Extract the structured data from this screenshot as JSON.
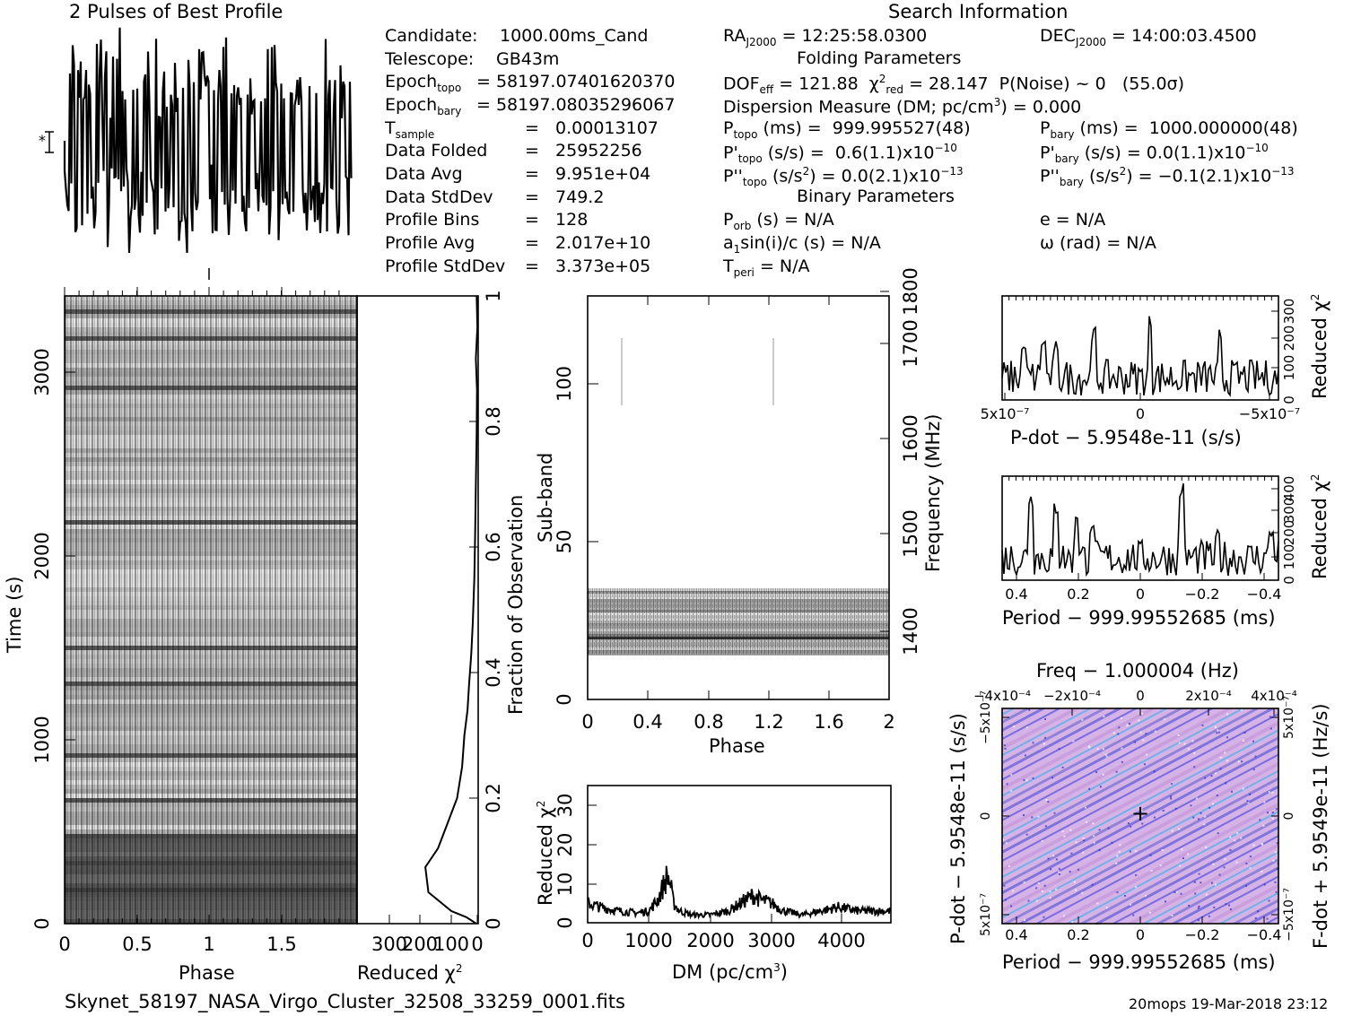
{
  "titles": {
    "profile": "2 Pulses of Best Profile",
    "search_info": "Search Information",
    "folding": "Folding Parameters",
    "binary": "Binary Parameters",
    "footer_file": "Skynet_58197_NASA_Virgo_Cluster_32508_33259_0001.fits",
    "footer_stamp": "20mops 19-Mar-2018 23:12"
  },
  "info_left": [
    {
      "label": "Candidate:",
      "value": "1000.00ms_Cand"
    },
    {
      "label": "Telescope:",
      "value": "GB43m"
    },
    {
      "label": "Epoch",
      "sub": "topo",
      "value": "= 58197.07401620370"
    },
    {
      "label": "Epoch",
      "sub": "bary",
      "value": "= 58197.08035296067"
    },
    {
      "label": "T",
      "sub": "sample",
      "value": "=   0.00013107"
    },
    {
      "label": "Data Folded",
      "value": "=   25952256"
    },
    {
      "label": "Data Avg",
      "value": "=   9.951e+04"
    },
    {
      "label": "Data StdDev",
      "value": "=   749.2"
    },
    {
      "label": "Profile Bins",
      "value": "=   128"
    },
    {
      "label": "Profile Avg",
      "value": "=   2.017e+10"
    },
    {
      "label": "Profile StdDev",
      "value": "=   3.373e+05"
    }
  ],
  "info_mid": {
    "ra": "= 12:25:58.0300",
    "dec": "= 14:00:03.4500",
    "dof": "= 121.88",
    "chi2": "= 28.147",
    "pnoise": "P(Noise) ~ 0",
    "sigma": "(55.0σ)",
    "dm": "Dispersion Measure (DM; pc/cm",
    "dm_val": ") = 0.000",
    "ptopo": "(ms) =  999.995527(48)",
    "pbary": "(ms) =  1000.000000(48)",
    "pdtopo": "(s/s) =  0.6(1.1)x10",
    "pdtopo_exp": "−10",
    "pdbary": "(s/s) = 0.0(1.1)x10",
    "pdbary_exp": "−10",
    "pddtopo": "= 0.0(2.1)x10",
    "pddtopo_exp": "−13",
    "pddbary": "= −0.1(2.1)x10",
    "pddbary_exp": "−13",
    "porb": "(s) = N/A",
    "asini": "sin(i)/c (s) = N/A",
    "tperi": "= N/A",
    "ecc": "e = N/A",
    "omega": "ω (rad) = N/A"
  },
  "axes": {
    "phase": "Phase",
    "time": "Time (s)",
    "reduced_chi2": "Reduced χ",
    "fraction": "Fraction of Observation",
    "subband": "Sub-band",
    "frequency": "Frequency (MHz)",
    "dm": "DM (pc/cm",
    "pdot": "P-dot − 5.9548e-11 (s/s)",
    "period": "Period − 999.99552685 (ms)",
    "freq_top": "Freq − 1.000004 (Hz)",
    "pdot_side": "P-dot − 5.9548e-11 (s/s)",
    "fdot_side": "F-dot + 5.9549e-11 (Hz/s)"
  },
  "chart_data": [
    {
      "type": "line",
      "title": "2 Pulses of Best Profile",
      "x": [
        0,
        2
      ],
      "xlabel": "",
      "ylabel": ""
    },
    {
      "type": "heatmap",
      "xlabel": "Phase",
      "ylabel": "Time (s)",
      "xlim": [
        0,
        2
      ],
      "ylim": [
        0,
        3400
      ],
      "xticks": [
        "0",
        "0.5",
        "1",
        "1.5"
      ],
      "yticks": [
        "0",
        "1000",
        "2000",
        "3000"
      ]
    },
    {
      "type": "line",
      "xlabel": "Reduced χ²",
      "ylabel": "Fraction of Observation",
      "xticks": [
        "300",
        "200",
        "100",
        "0"
      ],
      "yticks": [
        "0",
        "0.2",
        "0.4",
        "0.6",
        "0.8",
        "1"
      ],
      "points": [
        [
          5,
          0
        ],
        [
          30,
          0.01
        ],
        [
          70,
          0.02
        ],
        [
          130,
          0.05
        ],
        [
          138,
          0.09
        ],
        [
          105,
          0.12
        ],
        [
          80,
          0.16
        ],
        [
          55,
          0.2
        ],
        [
          42,
          0.25
        ],
        [
          36,
          0.3
        ],
        [
          28,
          0.34
        ],
        [
          24,
          0.38
        ],
        [
          18,
          0.43
        ],
        [
          14,
          0.48
        ],
        [
          10,
          0.55
        ],
        [
          8,
          0.62
        ],
        [
          6,
          0.7
        ],
        [
          4,
          0.78
        ],
        [
          3,
          0.85
        ],
        [
          6,
          0.9
        ],
        [
          2,
          0.95
        ],
        [
          4,
          1.0
        ]
      ]
    },
    {
      "type": "heatmap",
      "xlabel": "Phase",
      "ylabel": "Sub-band",
      "xlim": [
        0,
        2
      ],
      "ylim": [
        0,
        128
      ],
      "xticks": [
        "0",
        "0.4",
        "0.8",
        "1.2",
        "1.6",
        "2"
      ],
      "yticks": [
        "0",
        "50",
        "100"
      ],
      "yticks_right": [
        "1400",
        "1500",
        "1600",
        "1700",
        "1800"
      ],
      "y2label": "Frequency (MHz)"
    },
    {
      "type": "line",
      "xlabel": "DM (pc/cm³)",
      "ylabel": "Reduced χ²",
      "xlim": [
        0,
        4950
      ],
      "ylim": [
        0,
        35
      ],
      "xticks": [
        "0",
        "1000",
        "2000",
        "3000",
        "4000"
      ],
      "yticks": [
        "0",
        "10",
        "20",
        "30"
      ],
      "x": [
        0,
        200,
        500,
        800,
        1000,
        1150,
        1250,
        1300,
        1350,
        1400,
        1500,
        1700,
        2000,
        2300,
        2500,
        2700,
        2800,
        3000,
        3200,
        3500,
        3800,
        4100,
        4400,
        4700,
        4950
      ],
      "y": [
        5,
        4,
        3,
        2.5,
        3,
        6,
        10,
        12,
        10,
        5,
        3,
        2,
        2,
        3,
        5,
        7,
        6,
        5,
        3,
        2,
        3,
        4,
        3,
        3,
        3
      ]
    },
    {
      "type": "line",
      "xlabel": "P-dot − 5.9548e-11 (s/s)",
      "ylabel": "Reduced χ²",
      "xticks": [
        "5x10⁻⁷",
        "0",
        "−5x10⁻⁷"
      ],
      "yticks": [
        "0",
        "100",
        "200",
        "300"
      ]
    },
    {
      "type": "line",
      "xlabel": "Period − 999.99552685 (ms)",
      "ylabel": "Reduced χ²",
      "xticks": [
        "0.4",
        "0.2",
        "0",
        "−0.2",
        "−0.4"
      ],
      "yticks": [
        "0",
        "100",
        "200",
        "300",
        "400"
      ]
    },
    {
      "type": "heatmap",
      "title": "Freq − 1.000004 (Hz)",
      "xlabel": "Period − 999.99552685 (ms)",
      "ylabel": "P-dot − 5.9548e-11 (s/s)",
      "xticks": [
        "0.4",
        "0.2",
        "0",
        "−0.2",
        "−0.4"
      ],
      "xticks_top": [
        "−4x10⁻⁴",
        "−2x10⁻⁴",
        "0",
        "2x10⁻⁴",
        "4x10⁻⁴"
      ],
      "yticks": [
        "−5x10⁻⁷",
        "0",
        "5x10⁻⁷"
      ],
      "yticks_right": [
        "5x10⁻⁷",
        "0",
        "−5x10⁻⁷"
      ],
      "y2label": "F-dot + 5.9549e-11 (Hz/s)"
    }
  ]
}
